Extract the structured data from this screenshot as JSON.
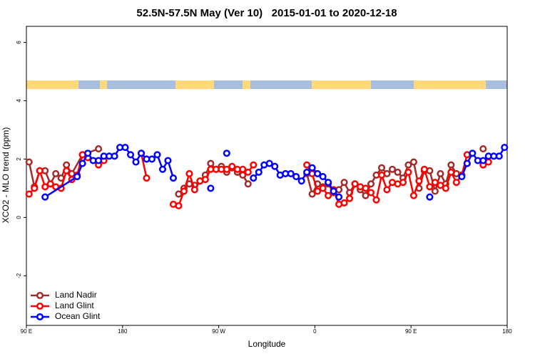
{
  "chart_data": {
    "type": "line",
    "title": "52.5N-57.5N May (Ver 10)   2015-01-01 to 2020-12-18",
    "x_label": "Longitude",
    "y_label": "XCO2 - MLO trend (ppm)",
    "xlim": [
      90,
      540
    ],
    "xticks": [
      {
        "value": 90,
        "label": "90 E"
      },
      {
        "value": 180,
        "label": "180"
      },
      {
        "value": 270,
        "label": "90 W"
      },
      {
        "value": 360,
        "label": "0"
      },
      {
        "value": 450,
        "label": "90 E"
      },
      {
        "value": 540,
        "label": "180"
      }
    ],
    "ylim": [
      -3.7,
      6.55
    ],
    "yticks": [
      -2,
      0,
      2,
      4,
      6
    ],
    "legend": "bottom-left",
    "series": [
      {
        "name": "Land Nadir",
        "color": "#a52a2a",
        "x": [
          92.5,
          97.5,
          102.5,
          107.5,
          112.5,
          117.5,
          122.5,
          127.5,
          132.5,
          142.5,
          157.5,
          null,
          232.5,
          237.5,
          242.5,
          247.5,
          252.5,
          257.5,
          262.5,
          267.5,
          272.5,
          277.5,
          282.5,
          287.5,
          292.5,
          297.5,
          null,
          352.5,
          357.5,
          362.5,
          367.5,
          372.5,
          377.5,
          382.5,
          387.5,
          392.5,
          397.5,
          402.5,
          407.5,
          412.5,
          417.5,
          422.5,
          427.5,
          432.5,
          437.5,
          442.5,
          447.5,
          452.5,
          457.5,
          462.5,
          467.5,
          472.5,
          477.5,
          482.5,
          487.5,
          492.5,
          497.5,
          502.5,
          null,
          517.5
        ],
        "values": [
          1.9,
          1.05,
          1.6,
          1.6,
          1.15,
          1.5,
          1.35,
          1.8,
          1.5,
          2.15,
          2.35,
          null,
          0.8,
          1.0,
          1.15,
          1.1,
          1.25,
          1.45,
          1.85,
          1.65,
          1.75,
          1.55,
          1.7,
          1.55,
          1.45,
          1.15,
          null,
          1.5,
          0.8,
          1.15,
          1.05,
          1.15,
          0.85,
          0.95,
          1.2,
          0.85,
          1.15,
          0.95,
          0.75,
          1.15,
          1.45,
          1.7,
          1.5,
          1.65,
          1.55,
          1.35,
          1.8,
          1.9,
          1.0,
          1.6,
          1.6,
          0.9,
          1.5,
          1.15,
          1.8,
          1.5,
          1.45,
          1.85,
          null,
          2.35
        ]
      },
      {
        "name": "Land Glint",
        "color": "#ff0000",
        "x": [
          92.5,
          97.5,
          102.5,
          107.5,
          112.5,
          117.5,
          122.5,
          127.5,
          132.5,
          137.5,
          142.5,
          147.5,
          157.5,
          162.5,
          null,
          197.5,
          202.5,
          null,
          227.5,
          232.5,
          237.5,
          242.5,
          247.5,
          252.5,
          257.5,
          262.5,
          267.5,
          272.5,
          277.5,
          282.5,
          287.5,
          292.5,
          297.5,
          302.5,
          null,
          352.5,
          357.5,
          362.5,
          367.5,
          372.5,
          377.5,
          382.5,
          387.5,
          392.5,
          397.5,
          402.5,
          407.5,
          412.5,
          417.5,
          422.5,
          427.5,
          432.5,
          437.5,
          442.5,
          447.5,
          452.5,
          457.5,
          462.5,
          467.5,
          472.5,
          477.5,
          482.5,
          487.5,
          492.5,
          497.5,
          502.5,
          null,
          517.5,
          522.5
        ],
        "values": [
          0.8,
          1.0,
          1.6,
          1.05,
          1.15,
          1.05,
          1.0,
          1.6,
          1.3,
          1.45,
          2.15,
          2.05,
          1.8,
          1.95,
          null,
          2.2,
          1.35,
          null,
          0.45,
          0.4,
          0.9,
          1.5,
          0.95,
          1.25,
          1.3,
          1.65,
          1.65,
          1.65,
          1.65,
          1.75,
          1.65,
          1.65,
          1.55,
          1.8,
          null,
          1.8,
          1.5,
          0.9,
          1.0,
          0.75,
          0.95,
          0.45,
          0.5,
          0.65,
          1.15,
          1.05,
          1.0,
          0.85,
          0.6,
          1.45,
          0.95,
          1.2,
          1.15,
          1.2,
          1.55,
          0.75,
          1.25,
          1.65,
          1.05,
          1.2,
          1.1,
          1.0,
          1.55,
          1.2,
          1.45,
          2.15,
          null,
          1.8,
          1.9
        ]
      },
      {
        "name": "Ocean Glint",
        "color": "#0000ff",
        "x": [
          107.5,
          137.5,
          142.5,
          147.5,
          152.5,
          157.5,
          162.5,
          167.5,
          172.5,
          177.5,
          182.5,
          187.5,
          192.5,
          197.5,
          202.5,
          207.5,
          212.5,
          217.5,
          222.5,
          227.5,
          null,
          262.5,
          null,
          277.5,
          null,
          302.5,
          307.5,
          312.5,
          317.5,
          322.5,
          327.5,
          332.5,
          337.5,
          342.5,
          347.5,
          352.5,
          357.5,
          362.5,
          367.5,
          372.5,
          377.5,
          382.5,
          null,
          467.5,
          null,
          497.5,
          502.5,
          507.5,
          512.5,
          517.5,
          522.5,
          527.5,
          532.5,
          537.5
        ],
        "values": [
          0.7,
          1.4,
          1.85,
          2.2,
          1.95,
          1.95,
          2.1,
          2.1,
          2.1,
          2.4,
          2.4,
          2.15,
          1.9,
          2.2,
          2.0,
          2.0,
          2.15,
          1.65,
          1.95,
          1.35,
          null,
          1.0,
          null,
          2.2,
          null,
          1.35,
          1.55,
          1.8,
          1.85,
          1.75,
          1.45,
          1.5,
          1.5,
          1.4,
          1.25,
          1.55,
          1.7,
          1.5,
          1.4,
          1.2,
          0.9,
          0.7,
          null,
          0.7,
          null,
          1.4,
          1.85,
          2.2,
          1.95,
          1.95,
          2.1,
          2.1,
          2.1,
          2.4
        ]
      }
    ]
  }
}
